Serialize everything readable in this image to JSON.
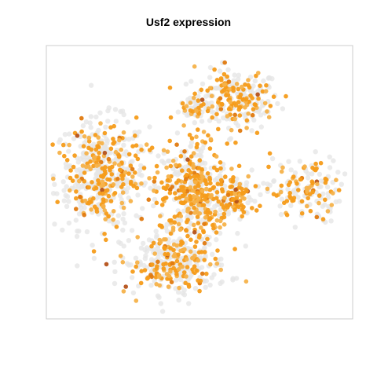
{
  "chart_data": {
    "type": "scatter",
    "title": "Usf2 expression",
    "xlabel": "",
    "ylabel": "",
    "axes_visible": false,
    "grid": false,
    "legend": "none",
    "colors": {
      "background_cells": "#e6e6e6",
      "low": "#f6b24a",
      "mid": "#f59c1a",
      "high": "#e07a10",
      "top": "#b5521a",
      "frame": "#cccccc"
    },
    "clusters": [
      {
        "name": "top-right",
        "cx": 0.62,
        "cy": 0.8,
        "rx": 0.13,
        "ry": 0.1,
        "n_bg": 140,
        "n_expr": 120
      },
      {
        "name": "top-mid",
        "cx": 0.49,
        "cy": 0.78,
        "rx": 0.05,
        "ry": 0.05,
        "n_bg": 30,
        "n_expr": 20
      },
      {
        "name": "left",
        "cx": 0.18,
        "cy": 0.53,
        "rx": 0.14,
        "ry": 0.18,
        "n_bg": 330,
        "n_expr": 200
      },
      {
        "name": "center",
        "cx": 0.48,
        "cy": 0.47,
        "rx": 0.11,
        "ry": 0.17,
        "n_bg": 200,
        "n_expr": 260
      },
      {
        "name": "center-r",
        "cx": 0.62,
        "cy": 0.45,
        "rx": 0.06,
        "ry": 0.08,
        "n_bg": 50,
        "n_expr": 70
      },
      {
        "name": "right",
        "cx": 0.84,
        "cy": 0.47,
        "rx": 0.11,
        "ry": 0.11,
        "n_bg": 90,
        "n_expr": 75
      },
      {
        "name": "bottom",
        "cx": 0.42,
        "cy": 0.2,
        "rx": 0.16,
        "ry": 0.1,
        "n_bg": 210,
        "n_expr": 140
      }
    ]
  }
}
